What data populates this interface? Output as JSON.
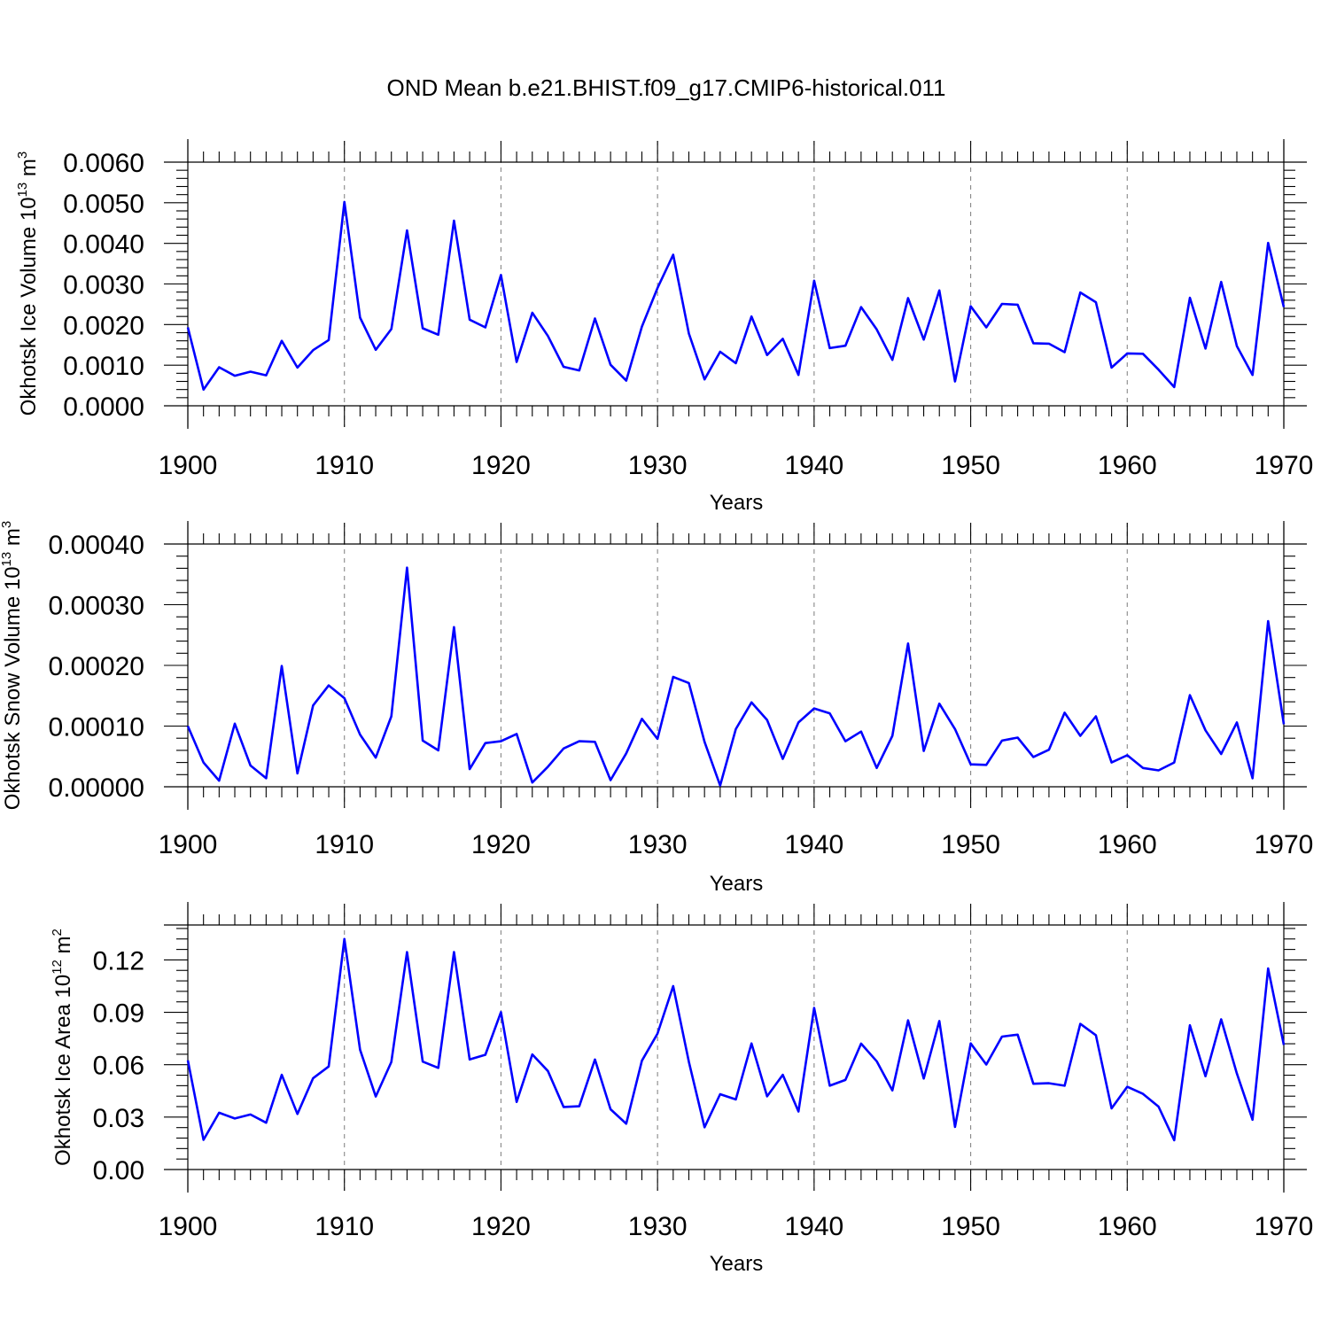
{
  "title": "OND Mean b.e21.BHIST.f09_g17.CMIP6-historical.011",
  "colors": {
    "line": "#0000ff",
    "grid": "#888888",
    "axis": "#000000"
  },
  "chart_data": [
    {
      "type": "line",
      "ylabel": {
        "text": "Okhotsk Ice Volume 10",
        "sup_power": "13",
        "unit": " m",
        "sup_unit": "3"
      },
      "xlabel": "Years",
      "xlim": [
        1900,
        1970
      ],
      "ylim": [
        0,
        0.006
      ],
      "xticks": [
        "1900",
        "1910",
        "1920",
        "1930",
        "1940",
        "1950",
        "1960",
        "1970"
      ],
      "yticks": [
        "0.0000",
        "0.0010",
        "0.0020",
        "0.0030",
        "0.0040",
        "0.0050",
        "0.0060"
      ],
      "ytick_values": [
        0,
        0.001,
        0.002,
        0.003,
        0.004,
        0.005,
        0.006
      ],
      "grid": "vertical dashed at decades",
      "x": [
        1900,
        1901,
        1902,
        1903,
        1904,
        1905,
        1906,
        1907,
        1908,
        1909,
        1910,
        1911,
        1912,
        1913,
        1914,
        1915,
        1916,
        1917,
        1918,
        1919,
        1920,
        1921,
        1922,
        1923,
        1924,
        1925,
        1926,
        1927,
        1928,
        1929,
        1930,
        1931,
        1932,
        1933,
        1934,
        1935,
        1936,
        1937,
        1938,
        1939,
        1940,
        1941,
        1942,
        1943,
        1944,
        1945,
        1946,
        1947,
        1948,
        1949,
        1950,
        1951,
        1952,
        1953,
        1954,
        1955,
        1956,
        1957,
        1958,
        1959,
        1960,
        1961,
        1962,
        1963,
        1964,
        1965,
        1966,
        1967,
        1968,
        1969,
        1970
      ],
      "y": [
        0.00193,
        0.0004,
        0.00095,
        0.00074,
        0.00084,
        0.00075,
        0.0016,
        0.00094,
        0.00137,
        0.00162,
        0.00502,
        0.00217,
        0.00138,
        0.00189,
        0.00432,
        0.00191,
        0.00175,
        0.00456,
        0.00212,
        0.00193,
        0.00322,
        0.00108,
        0.00229,
        0.00172,
        0.00096,
        0.00087,
        0.00215,
        0.00101,
        0.00062,
        0.00195,
        0.0029,
        0.00372,
        0.00178,
        0.00065,
        0.00133,
        0.00105,
        0.0022,
        0.00125,
        0.00165,
        0.00076,
        0.00308,
        0.00142,
        0.00148,
        0.00243,
        0.00188,
        0.00113,
        0.00265,
        0.00163,
        0.00284,
        0.0006,
        0.00245,
        0.00193,
        0.00251,
        0.00249,
        0.00154,
        0.00153,
        0.00132,
        0.00279,
        0.00255,
        0.00094,
        0.00129,
        0.00128,
        0.00089,
        0.00046,
        0.00266,
        0.00141,
        0.00305,
        0.00147,
        0.00076,
        0.00401,
        0.00243
      ]
    },
    {
      "type": "line",
      "ylabel": {
        "text": "Okhotsk Snow Volume 10",
        "sup_power": "13",
        "unit": " m",
        "sup_unit": "3"
      },
      "xlabel": "Years",
      "xlim": [
        1900,
        1970
      ],
      "ylim": [
        0,
        0.0004
      ],
      "xticks": [
        "1900",
        "1910",
        "1920",
        "1930",
        "1940",
        "1950",
        "1960",
        "1970"
      ],
      "yticks": [
        "0.00000",
        "0.00010",
        "0.00020",
        "0.00030",
        "0.00040"
      ],
      "ytick_values": [
        0,
        0.0001,
        0.0002,
        0.0003,
        0.0004
      ],
      "grid": "vertical dashed at decades",
      "x": [
        1900,
        1901,
        1902,
        1903,
        1904,
        1905,
        1906,
        1907,
        1908,
        1909,
        1910,
        1911,
        1912,
        1913,
        1914,
        1915,
        1916,
        1917,
        1918,
        1919,
        1920,
        1921,
        1922,
        1923,
        1924,
        1925,
        1926,
        1927,
        1928,
        1929,
        1930,
        1931,
        1932,
        1933,
        1934,
        1935,
        1936,
        1937,
        1938,
        1939,
        1940,
        1941,
        1942,
        1943,
        1944,
        1945,
        1946,
        1947,
        1948,
        1949,
        1950,
        1951,
        1952,
        1953,
        1954,
        1955,
        1956,
        1957,
        1958,
        1959,
        1960,
        1961,
        1962,
        1963,
        1964,
        1965,
        1966,
        1967,
        1968,
        1969,
        1970
      ],
      "y": [
        0.0001,
        4e-05,
        1e-05,
        0.000104,
        3.5e-05,
        1.4e-05,
        0.000199,
        2.2e-05,
        0.000134,
        0.000167,
        0.000146,
        8.6e-05,
        4.8e-05,
        0.000116,
        0.000361,
        7.6e-05,
        6e-05,
        0.000263,
        2.9e-05,
        7.2e-05,
        7.5e-05,
        8.7e-05,
        7e-06,
        3.3e-05,
        6.3e-05,
        7.5e-05,
        7.4e-05,
        1.1e-05,
        5.5e-05,
        0.000112,
        7.9e-05,
        0.000181,
        0.000171,
        7.4e-05,
        2e-06,
        9.5e-05,
        0.000139,
        0.00011,
        4.6e-05,
        0.000106,
        0.000129,
        0.000121,
        7.5e-05,
        9.1e-05,
        3.1e-05,
        8.4e-05,
        0.000236,
        5.9e-05,
        0.000137,
        9.5e-05,
        3.7e-05,
        3.6e-05,
        7.6e-05,
        8.1e-05,
        4.9e-05,
        6.1e-05,
        0.000122,
        8.4e-05,
        0.000116,
        4e-05,
        5.2e-05,
        3.1e-05,
        2.7e-05,
        4e-05,
        0.000151,
        9.3e-05,
        5.4e-05,
        0.000106,
        1.4e-05,
        0.000273,
        0.000103
      ]
    },
    {
      "type": "line",
      "ylabel": {
        "text": "Okhotsk Ice Area 10",
        "sup_power": "12",
        "unit": " m",
        "sup_unit": "2"
      },
      "xlabel": "Years",
      "xlim": [
        1900,
        1970
      ],
      "ylim": [
        0,
        0.14
      ],
      "xticks": [
        "1900",
        "1910",
        "1920",
        "1930",
        "1940",
        "1950",
        "1960",
        "1970"
      ],
      "yticks": [
        "0.00",
        "0.03",
        "0.06",
        "0.09",
        "0.12"
      ],
      "ytick_values": [
        0,
        0.03,
        0.06,
        0.09,
        0.12
      ],
      "grid": "vertical dashed at decades",
      "x": [
        1900,
        1901,
        1902,
        1903,
        1904,
        1905,
        1906,
        1907,
        1908,
        1909,
        1910,
        1911,
        1912,
        1913,
        1914,
        1915,
        1916,
        1917,
        1918,
        1919,
        1920,
        1921,
        1922,
        1923,
        1924,
        1925,
        1926,
        1927,
        1928,
        1929,
        1930,
        1931,
        1932,
        1933,
        1934,
        1935,
        1936,
        1937,
        1938,
        1939,
        1940,
        1941,
        1942,
        1943,
        1944,
        1945,
        1946,
        1947,
        1948,
        1949,
        1950,
        1951,
        1952,
        1953,
        1954,
        1955,
        1956,
        1957,
        1958,
        1959,
        1960,
        1961,
        1962,
        1963,
        1964,
        1965,
        1966,
        1967,
        1968,
        1969,
        1970
      ],
      "y": [
        0.0625,
        0.017,
        0.0325,
        0.0292,
        0.0315,
        0.0268,
        0.0542,
        0.0318,
        0.0523,
        0.059,
        0.132,
        0.0686,
        0.0418,
        0.0616,
        0.1245,
        0.0618,
        0.0582,
        0.1245,
        0.063,
        0.0657,
        0.0901,
        0.0387,
        0.0659,
        0.0564,
        0.0358,
        0.0362,
        0.063,
        0.0345,
        0.0262,
        0.0623,
        0.0778,
        0.105,
        0.0617,
        0.0242,
        0.0431,
        0.0401,
        0.0722,
        0.0419,
        0.0542,
        0.0332,
        0.0925,
        0.048,
        0.0513,
        0.0721,
        0.062,
        0.0453,
        0.0854,
        0.0521,
        0.085,
        0.0244,
        0.0722,
        0.0601,
        0.0761,
        0.0772,
        0.0491,
        0.0494,
        0.048,
        0.0834,
        0.0769,
        0.035,
        0.0474,
        0.0433,
        0.036,
        0.0168,
        0.0826,
        0.0534,
        0.086,
        0.055,
        0.0285,
        0.1151,
        0.0713
      ]
    }
  ]
}
